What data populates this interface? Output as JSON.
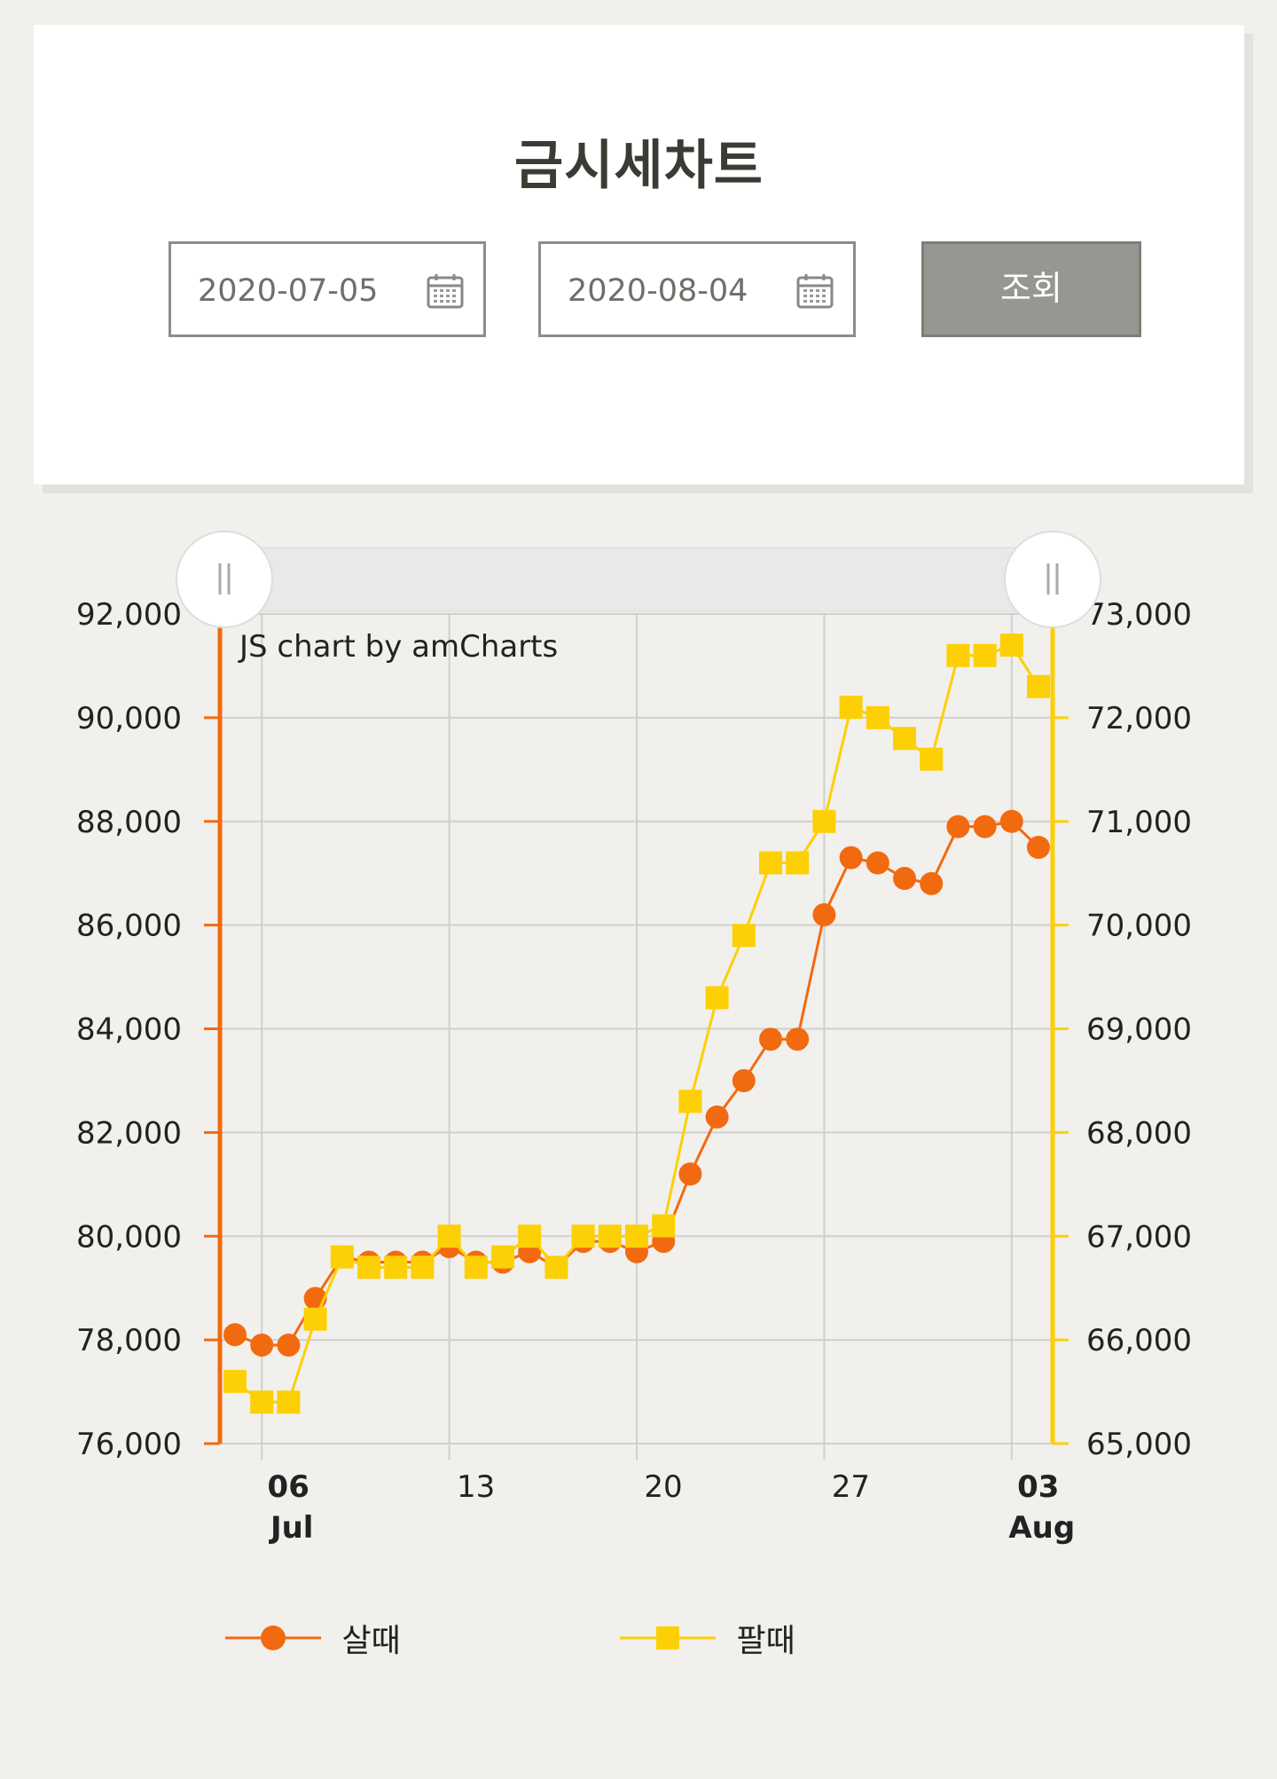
{
  "page": {
    "title": "금시세차트",
    "start_date": "2020-07-05",
    "end_date": "2020-08-04",
    "separator": "~",
    "search_button": "조회",
    "watermark": "JS chart by amCharts"
  },
  "colors": {
    "buy": "#f26a10",
    "sell": "#fcd004",
    "grid": "#cfcfcf",
    "scrollbar": "#e9e9e9"
  },
  "chart_data": {
    "type": "line",
    "x_dates": [
      "07-05",
      "07-06",
      "07-07",
      "07-08",
      "07-09",
      "07-10",
      "07-11",
      "07-12",
      "07-13",
      "07-14",
      "07-15",
      "07-16",
      "07-17",
      "07-18",
      "07-19",
      "07-20",
      "07-21",
      "07-22",
      "07-23",
      "07-24",
      "07-25",
      "07-26",
      "07-27",
      "07-28",
      "07-29",
      "07-30",
      "07-31",
      "08-01",
      "08-02",
      "08-03",
      "08-04"
    ],
    "x_ticks": [
      {
        "day": "06",
        "month": "Jul",
        "bold": true,
        "index": 1
      },
      {
        "day": "13",
        "month": "",
        "bold": false,
        "index": 8
      },
      {
        "day": "20",
        "month": "",
        "bold": false,
        "index": 15
      },
      {
        "day": "27",
        "month": "",
        "bold": false,
        "index": 22
      },
      {
        "day": "03",
        "month": "Aug",
        "bold": true,
        "index": 29
      }
    ],
    "y_left": {
      "min": 76000,
      "max": 92000,
      "ticks": [
        "76,000",
        "78,000",
        "80,000",
        "82,000",
        "84,000",
        "86,000",
        "88,000",
        "90,000",
        "92,000"
      ]
    },
    "y_right": {
      "min": 65000,
      "max": 73000,
      "ticks": [
        "65,000",
        "66,000",
        "67,000",
        "68,000",
        "69,000",
        "70,000",
        "71,000",
        "72,000",
        "73,000"
      ]
    },
    "series": [
      {
        "name": "살때",
        "axis": "left",
        "marker": "circle",
        "points": [
          [
            0,
            78100
          ],
          [
            1,
            77900
          ],
          [
            2,
            77900
          ],
          [
            3,
            78800
          ],
          [
            4,
            79600
          ],
          [
            5,
            79500
          ],
          [
            6,
            79500
          ],
          [
            7,
            79500
          ],
          [
            8,
            79800
          ],
          [
            9,
            79500
          ],
          [
            10,
            79500
          ],
          [
            11,
            79700
          ],
          [
            12,
            79400
          ],
          [
            13,
            79900
          ],
          [
            14,
            79900
          ],
          [
            15,
            79700
          ],
          [
            16,
            79900
          ],
          [
            17,
            81200
          ],
          [
            18,
            82300
          ],
          [
            19,
            83000
          ],
          [
            20,
            83800
          ],
          [
            21,
            83800
          ],
          [
            22,
            86200
          ],
          [
            23,
            87300
          ],
          [
            24,
            87200
          ],
          [
            25,
            86900
          ],
          [
            26,
            86800
          ],
          [
            27,
            87900
          ],
          [
            28,
            87900
          ],
          [
            29,
            88000
          ],
          [
            30,
            87500
          ]
        ]
      },
      {
        "name": "팔때",
        "axis": "right",
        "marker": "square",
        "points": [
          [
            0,
            65600
          ],
          [
            1,
            65400
          ],
          [
            2,
            65400
          ],
          [
            3,
            66200
          ],
          [
            4,
            66800
          ],
          [
            5,
            66700
          ],
          [
            6,
            66700
          ],
          [
            7,
            66700
          ],
          [
            8,
            67000
          ],
          [
            9,
            66700
          ],
          [
            10,
            66800
          ],
          [
            11,
            67000
          ],
          [
            12,
            66700
          ],
          [
            13,
            67000
          ],
          [
            14,
            67000
          ],
          [
            15,
            67000
          ],
          [
            16,
            67100
          ],
          [
            17,
            68300
          ],
          [
            18,
            69300
          ],
          [
            19,
            69900
          ],
          [
            20,
            70600
          ],
          [
            21,
            70600
          ],
          [
            22,
            71000
          ],
          [
            23,
            72100
          ],
          [
            24,
            72000
          ],
          [
            25,
            71800
          ],
          [
            26,
            71600
          ],
          [
            27,
            72600
          ],
          [
            28,
            72600
          ],
          [
            29,
            72700
          ],
          [
            30,
            72300
          ]
        ]
      }
    ]
  }
}
